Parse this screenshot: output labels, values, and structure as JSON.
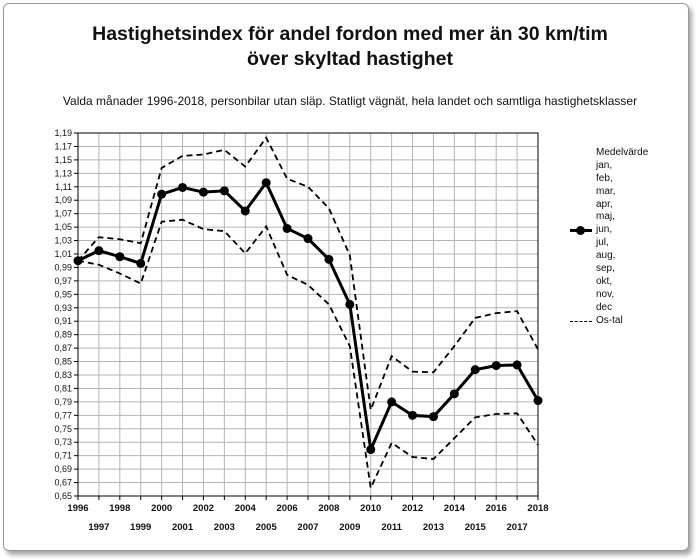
{
  "title": "Hastighetsindex för andel fordon med mer än 30 km/tim\növer skyltad hastighet",
  "subtitle": "Valda månader 1996-2018, personbilar utan släp. Statligt vägnät, hela landet och samtliga hastighetsklasser",
  "legend": {
    "title": "Medelvärde",
    "items": [
      "jan,",
      "feb,",
      "mar,",
      "apr,",
      "maj,",
      "jun,",
      "jul,",
      "aug,",
      "sep,",
      "okt,",
      "nov,",
      "dec"
    ],
    "series_label": "Os-tal"
  },
  "chart_data": {
    "type": "line",
    "x": [
      1996,
      1997,
      1998,
      1999,
      2000,
      2001,
      2002,
      2003,
      2004,
      2005,
      2006,
      2007,
      2008,
      2009,
      2010,
      2011,
      2012,
      2013,
      2014,
      2015,
      2016,
      2017,
      2018
    ],
    "ylim": [
      0.65,
      1.19
    ],
    "ytick_step": 0.02,
    "ytick_labels": [
      "0,65",
      "0,67",
      "0,69",
      "0,71",
      "0,73",
      "0,75",
      "0,77",
      "0,79",
      "0,81",
      "0,83",
      "0,85",
      "0,87",
      "0,89",
      "0,91",
      "0,93",
      "0,95",
      "0,97",
      "0,99",
      "1,01",
      "1,03",
      "1,05",
      "1,07",
      "1,09",
      "1,11",
      "1,13",
      "1,15",
      "1,17",
      "1,19"
    ],
    "xtick_labels_top": [
      "1996",
      "1998",
      "2000",
      "2002",
      "2004",
      "2006",
      "2008",
      "2010",
      "2012",
      "2014",
      "2016",
      "2018"
    ],
    "xtick_labels_bottom": [
      "1997",
      "1999",
      "2001",
      "2003",
      "2005",
      "2007",
      "2009",
      "2011",
      "2013",
      "2015",
      "2017"
    ],
    "grid": true,
    "legend_position": "right",
    "series": [
      {
        "name": "Medelvärde jan, feb, mar, apr, maj, jun, jul, aug, sep, okt, nov, dec",
        "style": "solid-markers",
        "color": "#000000",
        "values": [
          1.0,
          1.015,
          1.006,
          0.996,
          1.099,
          1.109,
          1.102,
          1.104,
          1.074,
          1.116,
          1.048,
          1.033,
          1.002,
          0.935,
          0.719,
          0.79,
          0.77,
          0.768,
          0.802,
          0.838,
          0.844,
          0.845,
          0.792
        ]
      },
      {
        "name": "Os-tal",
        "style": "dashed",
        "color": "#000000",
        "values": [
          1.0,
          1.035,
          1.032,
          1.026,
          1.138,
          1.156,
          1.158,
          1.165,
          1.14,
          1.183,
          1.122,
          1.11,
          1.078,
          1.008,
          0.778,
          0.858,
          0.835,
          0.834,
          0.873,
          0.915,
          0.922,
          0.925,
          0.868
        ]
      },
      {
        "name": "Os-tal",
        "style": "dashed",
        "color": "#000000",
        "values": [
          1.0,
          0.994,
          0.981,
          0.966,
          1.058,
          1.061,
          1.047,
          1.044,
          1.011,
          1.051,
          0.979,
          0.964,
          0.935,
          0.873,
          0.662,
          0.729,
          0.708,
          0.705,
          0.736,
          0.767,
          0.772,
          0.773,
          0.726
        ]
      }
    ]
  }
}
